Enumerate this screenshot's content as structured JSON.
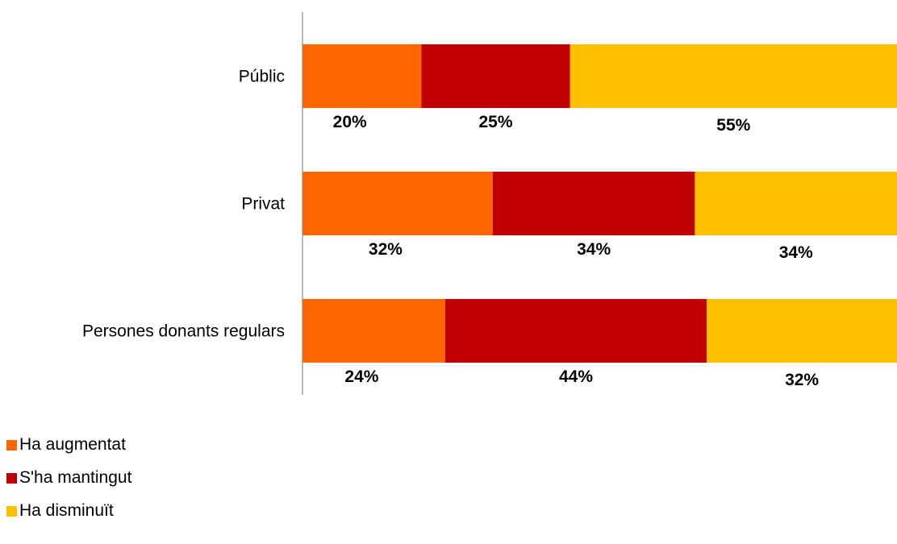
{
  "chart_data": {
    "type": "bar",
    "orientation": "horizontal",
    "stacked": true,
    "categories": [
      "Públic",
      "Privat",
      "Persones donants regulars"
    ],
    "series": [
      {
        "name": "Ha augmentat",
        "values": [
          20,
          32,
          24
        ],
        "labels": [
          "20%",
          "32%",
          "24%"
        ],
        "color": "#FF6600"
      },
      {
        "name": "S'ha mantingut",
        "values": [
          25,
          34,
          44
        ],
        "labels": [
          "25%",
          "34%",
          "44%"
        ],
        "color": "#C00000"
      },
      {
        "name": "Ha disminuït",
        "values": [
          55,
          34,
          32
        ],
        "labels": [
          "55%",
          "34%",
          "32%"
        ],
        "color": "#FFC000"
      }
    ],
    "xlim": [
      0,
      100
    ],
    "grid": false,
    "legend_position": "bottom-left",
    "data_label_position": "below-bar"
  },
  "legend": {
    "items": [
      {
        "label": "Ha augmentat",
        "color": "#FF6600"
      },
      {
        "label": "S'ha mantingut",
        "color": "#C00000"
      },
      {
        "label": "Ha disminuït",
        "color": "#FFC000"
      }
    ]
  }
}
